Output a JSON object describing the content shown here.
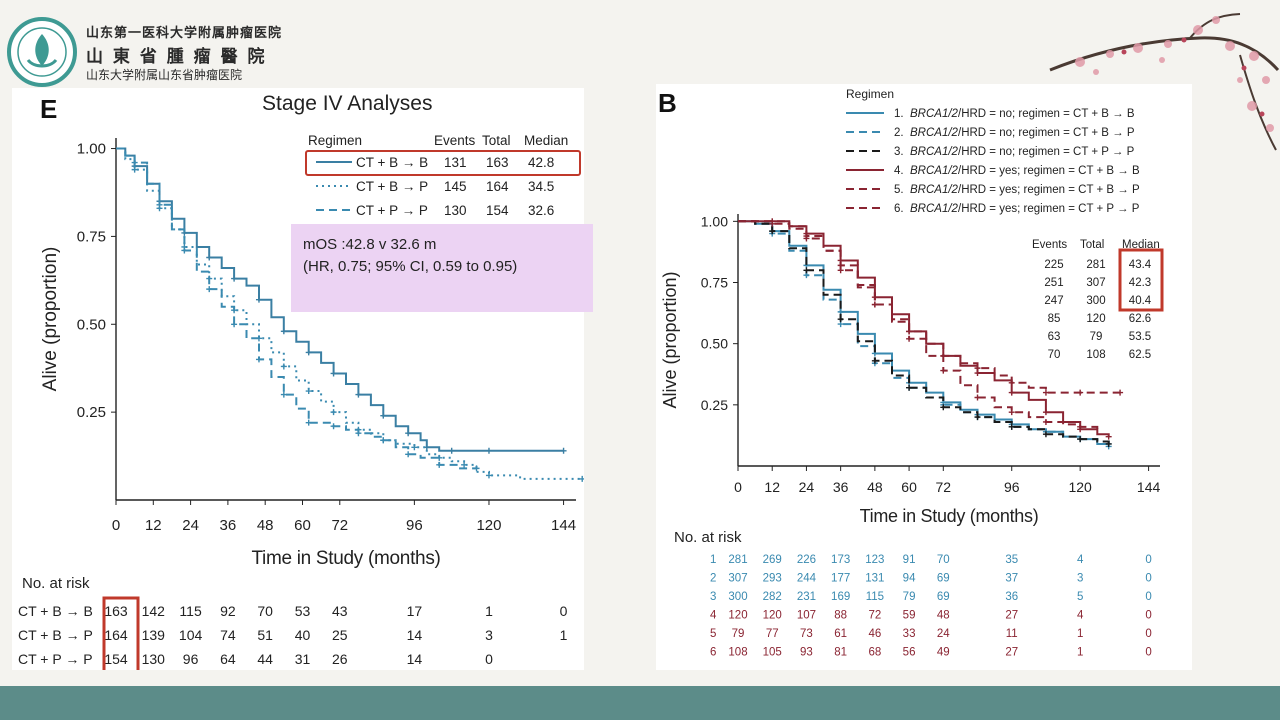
{
  "header": {
    "institution_line1": "山东第一医科大学附属肿瘤医院",
    "institution_line2": "山 東 省 腫 瘤 醫 院",
    "institution_line3": "山东大学附属山东省肿瘤医院"
  },
  "colors": {
    "left_line": "#3a7fa3",
    "teal": "#3a8ab0",
    "black": "#1a1a1a",
    "maroon": "#8a2432",
    "red_box": "#c0392b",
    "highlight": "#ecd3f3",
    "footer": "#5c8c89",
    "blossom": "#d98a9a"
  },
  "panel_e": {
    "letter": "E",
    "title": "Stage IV Analyses",
    "mos_line1": "mOS :42.8 v 32.6 m",
    "mos_line2": "(HR, 0.75; 95% CI, 0.59 to 0.95)",
    "at_risk_title": "No. at risk"
  },
  "panel_b": {
    "letter": "B",
    "at_risk_title": "No. at risk"
  },
  "chart_data": [
    {
      "type": "line",
      "panel": "E",
      "title": "Stage IV Analyses",
      "xlabel": "Time in Study (months)",
      "ylabel": "Alive (proportion)",
      "x_ticks": [
        0,
        12,
        24,
        36,
        48,
        60,
        72,
        96,
        120,
        144
      ],
      "y_ticks": [
        1.0,
        0.75,
        0.5,
        0.25
      ],
      "xlim": [
        0,
        148
      ],
      "ylim": [
        0,
        1.03
      ],
      "legend": {
        "header": [
          "Regimen",
          "Events",
          "Total",
          "Median"
        ],
        "placement": "top-right",
        "rows": [
          {
            "label": "CT + B → B",
            "events": "131",
            "total": "163",
            "median": "42.8"
          },
          {
            "label": "CT + B → P",
            "events": "145",
            "total": "164",
            "median": "34.5"
          },
          {
            "label": "CT + P → P",
            "events": "130",
            "total": "154",
            "median": "32.6"
          }
        ]
      },
      "series": [
        {
          "name": "CT + B → B",
          "dash": "solid",
          "x": [
            0,
            3,
            6,
            10,
            14,
            18,
            22,
            26,
            30,
            34,
            38,
            42,
            46,
            50,
            54,
            58,
            62,
            66,
            70,
            74,
            78,
            82,
            86,
            90,
            94,
            98,
            100,
            104,
            108,
            114,
            120,
            130,
            144
          ],
          "y": [
            1.0,
            0.98,
            0.95,
            0.9,
            0.85,
            0.8,
            0.76,
            0.72,
            0.69,
            0.66,
            0.63,
            0.61,
            0.57,
            0.52,
            0.48,
            0.45,
            0.42,
            0.39,
            0.36,
            0.33,
            0.3,
            0.27,
            0.24,
            0.21,
            0.19,
            0.17,
            0.15,
            0.14,
            0.14,
            0.14,
            0.14,
            0.14,
            0.14
          ]
        },
        {
          "name": "CT + B → P",
          "dash": "dot",
          "x": [
            0,
            3,
            6,
            10,
            14,
            18,
            22,
            26,
            30,
            34,
            38,
            42,
            46,
            50,
            54,
            58,
            62,
            66,
            70,
            74,
            78,
            82,
            86,
            90,
            96,
            100,
            104,
            108,
            112,
            116,
            120,
            130,
            150
          ],
          "y": [
            1.0,
            0.97,
            0.94,
            0.88,
            0.83,
            0.77,
            0.72,
            0.67,
            0.63,
            0.58,
            0.54,
            0.5,
            0.46,
            0.42,
            0.38,
            0.34,
            0.31,
            0.28,
            0.25,
            0.22,
            0.2,
            0.19,
            0.17,
            0.16,
            0.15,
            0.13,
            0.12,
            0.11,
            0.1,
            0.08,
            0.07,
            0.06,
            0.06
          ]
        },
        {
          "name": "CT + P → P",
          "dash": "dash",
          "x": [
            0,
            3,
            6,
            10,
            14,
            18,
            22,
            26,
            30,
            34,
            38,
            42,
            46,
            50,
            54,
            58,
            62,
            66,
            70,
            74,
            78,
            82,
            86,
            90,
            94,
            98,
            104,
            110,
            116
          ],
          "y": [
            1.0,
            0.98,
            0.96,
            0.9,
            0.84,
            0.77,
            0.71,
            0.65,
            0.6,
            0.55,
            0.5,
            0.46,
            0.4,
            0.35,
            0.3,
            0.26,
            0.22,
            0.22,
            0.21,
            0.2,
            0.19,
            0.18,
            0.17,
            0.15,
            0.13,
            0.12,
            0.1,
            0.09,
            0.09
          ]
        }
      ],
      "at_risk": {
        "x": [
          0,
          12,
          24,
          36,
          48,
          60,
          72,
          96,
          120,
          144
        ],
        "rows": [
          {
            "label": "CT + B → B",
            "values": [
              "163",
              "142",
              "115",
              "92",
              "70",
              "53",
              "43",
              "17",
              "1",
              "0"
            ]
          },
          {
            "label": "CT + B → P",
            "values": [
              "164",
              "139",
              "104",
              "74",
              "51",
              "40",
              "25",
              "14",
              "3",
              "1"
            ]
          },
          {
            "label": "CT + P → P",
            "values": [
              "154",
              "130",
              "96",
              "64",
              "44",
              "31",
              "26",
              "14",
              "0",
              ""
            ]
          }
        ]
      }
    },
    {
      "type": "line",
      "panel": "B",
      "xlabel": "Time in Study (months)",
      "ylabel": "Alive (proportion)",
      "x_ticks": [
        0,
        12,
        24,
        36,
        48,
        60,
        72,
        96,
        120,
        144
      ],
      "y_ticks": [
        1.0,
        0.75,
        0.5,
        0.25
      ],
      "xlim": [
        0,
        148
      ],
      "ylim": [
        0,
        1.03
      ],
      "legend": {
        "title": "Regimen",
        "placement": "top-right",
        "entries": [
          {
            "num": "1.",
            "gene": "BRCA1/2",
            "text": "/HRD = no; regimen = CT + B → B"
          },
          {
            "num": "2.",
            "gene": "BRCA1/2",
            "text": "/HRD = no; regimen = CT + B → P"
          },
          {
            "num": "3.",
            "gene": "BRCA1/2",
            "text": "/HRD = no; regimen = CT + P → P"
          },
          {
            "num": "4.",
            "gene": "BRCA1/2",
            "text": "/HRD = yes; regimen = CT + B → B"
          },
          {
            "num": "5.",
            "gene": "BRCA1/2",
            "text": "/HRD = yes; regimen = CT + B → P"
          },
          {
            "num": "6.",
            "gene": "BRCA1/2",
            "text": "/HRD = yes; regimen = CT + P → P"
          }
        ]
      },
      "stats_table": {
        "header": [
          "Events",
          "Total",
          "Median"
        ],
        "rows": [
          [
            "225",
            "281",
            "43.4"
          ],
          [
            "251",
            "307",
            "42.3"
          ],
          [
            "247",
            "300",
            "40.4"
          ],
          [
            "85",
            "120",
            "62.6"
          ],
          [
            "63",
            "79",
            "53.5"
          ],
          [
            "70",
            "108",
            "62.5"
          ]
        ]
      },
      "series": [
        {
          "name": "1",
          "dash": "solid",
          "x": [
            0,
            6,
            12,
            18,
            24,
            30,
            36,
            42,
            48,
            54,
            60,
            66,
            72,
            78,
            84,
            90,
            96,
            102,
            108,
            114,
            120,
            126,
            130
          ],
          "y": [
            1.0,
            0.99,
            0.96,
            0.9,
            0.82,
            0.72,
            0.63,
            0.54,
            0.46,
            0.39,
            0.34,
            0.3,
            0.26,
            0.23,
            0.21,
            0.19,
            0.17,
            0.15,
            0.14,
            0.12,
            0.11,
            0.09,
            0.08
          ]
        },
        {
          "name": "2",
          "dash": "dash",
          "x": [
            0,
            6,
            12,
            18,
            24,
            30,
            36,
            42,
            48,
            54,
            60,
            66,
            72,
            78,
            84,
            90,
            96,
            102,
            108,
            114,
            120,
            126,
            130
          ],
          "y": [
            1.0,
            0.99,
            0.95,
            0.88,
            0.78,
            0.68,
            0.58,
            0.49,
            0.42,
            0.36,
            0.32,
            0.28,
            0.25,
            0.22,
            0.2,
            0.18,
            0.16,
            0.15,
            0.14,
            0.12,
            0.11,
            0.1,
            0.09
          ]
        },
        {
          "name": "3",
          "dash": "dash",
          "x": [
            0,
            6,
            12,
            18,
            24,
            30,
            36,
            42,
            48,
            54,
            60,
            66,
            72,
            78,
            84,
            90,
            96,
            102,
            108,
            114,
            120,
            126,
            130
          ],
          "y": [
            1.0,
            0.99,
            0.96,
            0.89,
            0.8,
            0.7,
            0.6,
            0.51,
            0.43,
            0.37,
            0.32,
            0.28,
            0.24,
            0.22,
            0.2,
            0.18,
            0.16,
            0.15,
            0.13,
            0.12,
            0.11,
            0.1,
            0.09
          ]
        },
        {
          "name": "4",
          "dash": "solid",
          "x": [
            0,
            6,
            12,
            18,
            24,
            30,
            36,
            42,
            48,
            54,
            60,
            66,
            72,
            78,
            84,
            90,
            96,
            102,
            108,
            114,
            120,
            126,
            130
          ],
          "y": [
            1.0,
            1.0,
            1.0,
            0.98,
            0.95,
            0.9,
            0.84,
            0.77,
            0.69,
            0.62,
            0.55,
            0.5,
            0.45,
            0.41,
            0.38,
            0.35,
            0.3,
            0.27,
            0.22,
            0.18,
            0.15,
            0.13,
            0.12
          ]
        },
        {
          "name": "5",
          "dash": "dash",
          "x": [
            0,
            6,
            12,
            18,
            24,
            30,
            36,
            42,
            48,
            54,
            60,
            66,
            72,
            78,
            84,
            90,
            96,
            102,
            108,
            114,
            120,
            126
          ],
          "y": [
            1.0,
            1.0,
            0.99,
            0.97,
            0.93,
            0.88,
            0.82,
            0.74,
            0.66,
            0.59,
            0.52,
            0.45,
            0.39,
            0.33,
            0.28,
            0.24,
            0.22,
            0.2,
            0.18,
            0.17,
            0.16,
            0.15
          ]
        },
        {
          "name": "6",
          "dash": "dash",
          "x": [
            0,
            6,
            12,
            18,
            24,
            30,
            36,
            42,
            48,
            54,
            60,
            66,
            72,
            78,
            84,
            90,
            96,
            102,
            108,
            114,
            120,
            126,
            134
          ],
          "y": [
            1.0,
            1.0,
            1.0,
            0.98,
            0.94,
            0.88,
            0.8,
            0.73,
            0.66,
            0.6,
            0.55,
            0.5,
            0.45,
            0.42,
            0.4,
            0.37,
            0.34,
            0.32,
            0.3,
            0.3,
            0.3,
            0.3,
            0.3
          ]
        }
      ],
      "at_risk": {
        "x": [
          0,
          12,
          24,
          36,
          48,
          60,
          72,
          96,
          120,
          144
        ],
        "rows": [
          {
            "label": "1",
            "values": [
              "281",
              "269",
              "226",
              "173",
              "123",
              "91",
              "70",
              "35",
              "4",
              "0"
            ]
          },
          {
            "label": "2",
            "values": [
              "307",
              "293",
              "244",
              "177",
              "131",
              "94",
              "69",
              "37",
              "3",
              "0"
            ]
          },
          {
            "label": "3",
            "values": [
              "300",
              "282",
              "231",
              "169",
              "115",
              "79",
              "69",
              "36",
              "5",
              "0"
            ]
          },
          {
            "label": "4",
            "values": [
              "120",
              "120",
              "107",
              "88",
              "72",
              "59",
              "48",
              "27",
              "4",
              "0"
            ]
          },
          {
            "label": "5",
            "values": [
              "79",
              "77",
              "73",
              "61",
              "46",
              "33",
              "24",
              "11",
              "1",
              "0"
            ]
          },
          {
            "label": "6",
            "values": [
              "108",
              "105",
              "93",
              "81",
              "68",
              "56",
              "49",
              "27",
              "1",
              "0"
            ]
          }
        ]
      }
    }
  ]
}
